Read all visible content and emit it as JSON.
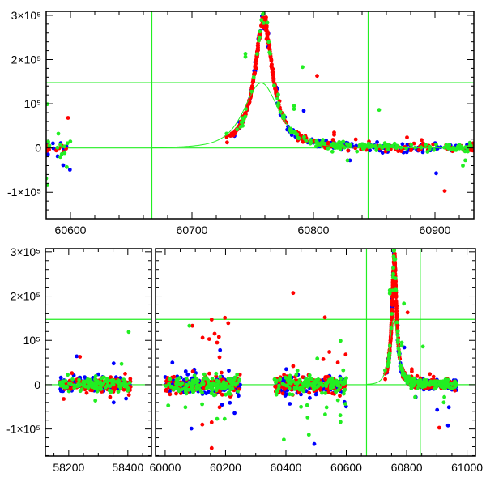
{
  "chart_data": {
    "type": "scatter",
    "title": "",
    "xlabel": "",
    "ylabel": "",
    "colors": {
      "red": "#ff0000",
      "green": "#22ee22",
      "blue": "#0000ff",
      "fit_line": "#22ee22",
      "axes": "#000000"
    },
    "reference_lines": {
      "vertical_x": [
        60667,
        60845
      ],
      "horizontal_y": [
        0,
        147500
      ]
    },
    "model_curve": {
      "peak_x": 60757,
      "peak_y": 147000,
      "width_days": 26,
      "start_x": 60667
    },
    "light_curve_peak": {
      "peak_x": 60759,
      "peak_y": 292000,
      "width_days": 9
    },
    "panels": [
      {
        "name": "zoom-panel",
        "segments": [
          {
            "xlim": [
              60580,
              60932
            ],
            "x_ticks": [
              60600,
              60700,
              60800,
              60900
            ],
            "x_tick_labels": [
              "60600",
              "60700",
              "60800",
              "60900"
            ],
            "minor_step": 20
          }
        ],
        "ylim": [
          -160000,
          309000
        ],
        "y_ticks": [
          -100000,
          0,
          100000,
          200000,
          300000
        ],
        "y_tick_labels": [
          "-1×10⁵",
          "0",
          "10⁵",
          "2×10⁵",
          "3×10⁵"
        ],
        "y_minor_step": 20000
      },
      {
        "name": "full-panel",
        "segments": [
          {
            "xlim": [
              58121,
              58480
            ],
            "x_ticks": [
              58200,
              58400
            ],
            "x_tick_labels": [
              "58200",
              "58400"
            ],
            "minor_step": 50
          },
          {
            "xlim": [
              59968,
              61028
            ],
            "x_ticks": [
              60000,
              60200,
              60400,
              60600,
              60800,
              61000
            ],
            "x_tick_labels": [
              "60000",
              "60200",
              "60400",
              "60600",
              "60800",
              "61000"
            ],
            "minor_step": 50
          }
        ],
        "ylim": [
          -161000,
          307000
        ],
        "y_ticks": [
          -100000,
          0,
          100000,
          200000,
          300000
        ],
        "y_tick_labels": [
          "-1×10⁵",
          "0",
          "10⁵",
          "2×10⁵",
          "3×10⁵"
        ],
        "y_minor_step": 20000
      }
    ],
    "series": [
      {
        "name": "red",
        "color": "#ff0000"
      },
      {
        "name": "green",
        "color": "#22ee22"
      },
      {
        "name": "blue",
        "color": "#0000ff"
      }
    ],
    "observing_seasons": [
      {
        "x_range": [
          58170,
          58410
        ],
        "noise": 9000,
        "points_per_series": 110
      },
      {
        "x_range": [
          60000,
          60250
        ],
        "noise": 11000,
        "points_per_series": 130
      },
      {
        "x_range": [
          60362,
          60600
        ],
        "noise": 10000,
        "points_per_series": 130
      },
      {
        "x_range": [
          60728,
          60965
        ],
        "noise": 7000,
        "points_per_series": 170,
        "follows_peak": true
      }
    ],
    "outliers": [
      {
        "series": "blue",
        "x": 58227,
        "y": 64000
      },
      {
        "series": "red",
        "x": 58238,
        "y": 63000
      },
      {
        "series": "blue",
        "x": 58352,
        "y": 48000
      },
      {
        "series": "blue",
        "x": 58352,
        "y": -40000
      },
      {
        "series": "green",
        "x": 58403,
        "y": 119000
      },
      {
        "series": "red",
        "x": 58211,
        "y": 26000
      },
      {
        "series": "red",
        "x": 58340,
        "y": -28000
      },
      {
        "series": "green",
        "x": 58290,
        "y": -36000
      },
      {
        "series": "green",
        "x": 60080,
        "y": 133000
      },
      {
        "series": "red",
        "x": 60090,
        "y": 133000
      },
      {
        "series": "red",
        "x": 60154,
        "y": 147000
      },
      {
        "series": "red",
        "x": 60198,
        "y": 151000
      },
      {
        "series": "red",
        "x": 60209,
        "y": 139000
      },
      {
        "series": "red",
        "x": 60124,
        "y": 106000
      },
      {
        "series": "red",
        "x": 60146,
        "y": 103000
      },
      {
        "series": "red",
        "x": 60164,
        "y": 115000
      },
      {
        "series": "red",
        "x": 60178,
        "y": 108000
      },
      {
        "series": "blue",
        "x": 60182,
        "y": 78000
      },
      {
        "series": "red",
        "x": 60172,
        "y": 95000
      },
      {
        "series": "red",
        "x": 60180,
        "y": 62000
      },
      {
        "series": "blue",
        "x": 60087,
        "y": -99000
      },
      {
        "series": "red",
        "x": 60123,
        "y": -90000
      },
      {
        "series": "red",
        "x": 60154,
        "y": -85000
      },
      {
        "series": "red",
        "x": 60154,
        "y": -143000
      },
      {
        "series": "blue",
        "x": 60230,
        "y": -64000
      },
      {
        "series": "green",
        "x": 60010,
        "y": -47000
      },
      {
        "series": "green",
        "x": 60067,
        "y": -51000
      },
      {
        "series": "red",
        "x": 60180,
        "y": -51000
      },
      {
        "series": "green",
        "x": 60172,
        "y": -77000
      },
      {
        "series": "green",
        "x": 60197,
        "y": -77000
      },
      {
        "series": "red",
        "x": 60424,
        "y": 207000
      },
      {
        "series": "red",
        "x": 60529,
        "y": 152000
      },
      {
        "series": "green",
        "x": 60581,
        "y": 99000
      },
      {
        "series": "red",
        "x": 60598,
        "y": 68000
      },
      {
        "series": "green",
        "x": 60504,
        "y": 59000
      },
      {
        "series": "red",
        "x": 60544,
        "y": 74000
      },
      {
        "series": "red",
        "x": 60424,
        "y": 42000
      },
      {
        "series": "red",
        "x": 60572,
        "y": 50000
      },
      {
        "series": "green",
        "x": 60393,
        "y": -124000
      },
      {
        "series": "blue",
        "x": 60494,
        "y": -134000
      },
      {
        "series": "green",
        "x": 60476,
        "y": -113000
      },
      {
        "series": "green",
        "x": 60581,
        "y": -84000
      },
      {
        "series": "green",
        "x": 60580,
        "y": -69000
      },
      {
        "series": "green",
        "x": 60472,
        "y": -74000
      },
      {
        "series": "blue",
        "x": 60594,
        "y": -39000
      },
      {
        "series": "blue",
        "x": 60413,
        "y": -43000
      },
      {
        "series": "green",
        "x": 60450,
        "y": -50000
      },
      {
        "series": "green",
        "x": 60530,
        "y": -67000
      },
      {
        "series": "green",
        "x": 60744,
        "y": 213000
      },
      {
        "series": "green",
        "x": 60744,
        "y": 206000
      },
      {
        "series": "green",
        "x": 60791,
        "y": 183000
      },
      {
        "series": "red",
        "x": 60803,
        "y": 163000
      },
      {
        "series": "blue",
        "x": 60792,
        "y": 84000
      },
      {
        "series": "green",
        "x": 60854,
        "y": 86000
      },
      {
        "series": "green",
        "x": 60784,
        "y": 95000
      },
      {
        "series": "green",
        "x": 60784,
        "y": 88000
      },
      {
        "series": "red",
        "x": 60817,
        "y": 35000
      },
      {
        "series": "red",
        "x": 60817,
        "y": 30000
      },
      {
        "series": "blue",
        "x": 60901,
        "y": -57000
      },
      {
        "series": "red",
        "x": 60908,
        "y": -97000
      },
      {
        "series": "green",
        "x": 60923,
        "y": -40000
      },
      {
        "series": "green",
        "x": 60925,
        "y": -28000
      },
      {
        "series": "blue",
        "x": 60937,
        "y": -92000
      },
      {
        "series": "blue",
        "x": 60940,
        "y": -51000
      },
      {
        "series": "red",
        "x": 60877,
        "y": 24000
      },
      {
        "series": "red",
        "x": 60889,
        "y": 18000
      },
      {
        "series": "blue",
        "x": 60830,
        "y": -28000
      },
      {
        "series": "green",
        "x": 60828,
        "y": -28000
      }
    ]
  }
}
